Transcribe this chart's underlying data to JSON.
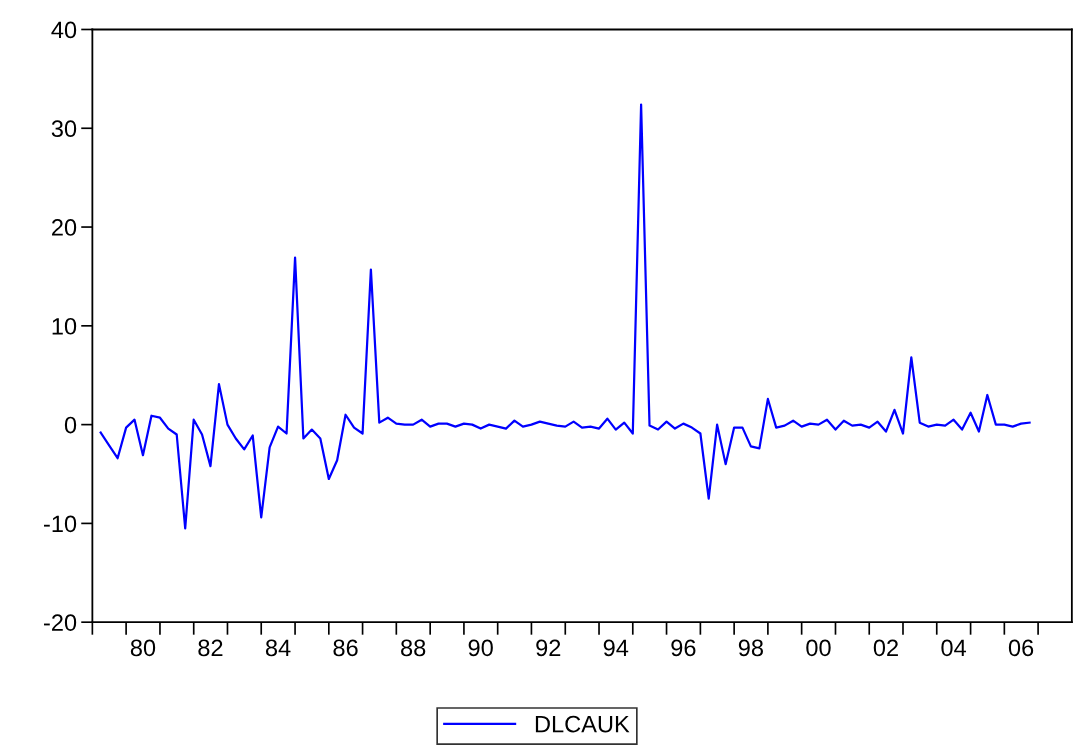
{
  "chart_data": {
    "type": "line",
    "x": [
      "1979-04",
      "1979-07",
      "1979-10",
      "1980-01",
      "1980-04",
      "1980-07",
      "1980-10",
      "1981-01",
      "1981-04",
      "1981-07",
      "1981-10",
      "1982-01",
      "1982-04",
      "1982-07",
      "1982-10",
      "1983-01",
      "1983-04",
      "1983-07",
      "1983-10",
      "1984-01",
      "1984-04",
      "1984-07",
      "1984-10",
      "1985-01",
      "1985-04",
      "1985-07",
      "1985-10",
      "1986-01",
      "1986-04",
      "1986-07",
      "1986-10",
      "1987-01",
      "1987-04",
      "1987-07",
      "1987-10",
      "1988-01",
      "1988-04",
      "1988-07",
      "1988-10",
      "1989-01",
      "1989-04",
      "1989-07",
      "1989-10",
      "1990-01",
      "1990-04",
      "1990-07",
      "1990-10",
      "1991-01",
      "1991-04",
      "1991-07",
      "1991-10",
      "1992-01",
      "1992-04",
      "1992-07",
      "1992-10",
      "1993-01",
      "1993-04",
      "1993-07",
      "1993-10",
      "1994-01",
      "1994-04",
      "1994-07",
      "1994-10",
      "1995-01",
      "1995-04",
      "1995-07",
      "1995-10",
      "1996-01",
      "1996-04",
      "1996-07",
      "1996-10",
      "1997-01",
      "1997-04",
      "1997-07",
      "1997-10",
      "1998-01",
      "1998-04",
      "1998-07",
      "1998-10",
      "1999-01",
      "1999-04",
      "1999-07",
      "1999-10",
      "2000-01",
      "2000-04",
      "2000-07",
      "2000-10",
      "2001-01",
      "2001-04",
      "2001-07",
      "2001-10",
      "2002-01",
      "2002-04",
      "2002-07",
      "2002-10",
      "2003-01",
      "2003-04",
      "2003-07",
      "2003-10",
      "2004-01",
      "2004-04",
      "2004-07",
      "2004-10",
      "2005-01",
      "2005-04",
      "2005-07",
      "2005-10",
      "2006-01",
      "2006-04",
      "2006-07",
      "2006-10"
    ],
    "series": [
      {
        "name": "DLCAUK",
        "color": "#0000ff",
        "values": [
          -0.8,
          -2.1,
          -3.4,
          -0.3,
          0.5,
          -3.1,
          0.9,
          0.7,
          -0.4,
          -1.0,
          -10.5,
          0.5,
          -1.0,
          -4.2,
          4.1,
          0.0,
          -1.4,
          -2.5,
          -1.1,
          -9.4,
          -2.3,
          -0.2,
          -0.9,
          16.9,
          -1.4,
          -0.5,
          -1.4,
          -5.5,
          -3.6,
          1.0,
          -0.3,
          -0.9,
          15.7,
          0.2,
          0.7,
          0.1,
          0.0,
          0.0,
          0.5,
          -0.2,
          0.1,
          0.1,
          -0.2,
          0.1,
          0.0,
          -0.4,
          0.0,
          -0.2,
          -0.4,
          0.4,
          -0.2,
          0.0,
          0.3,
          0.1,
          -0.1,
          -0.2,
          0.3,
          -0.3,
          -0.2,
          -0.4,
          0.6,
          -0.5,
          0.2,
          -0.9,
          32.4,
          -0.1,
          -0.5,
          0.3,
          -0.4,
          0.1,
          -0.3,
          -0.9,
          -7.5,
          0.0,
          -4.0,
          -0.3,
          -0.3,
          -2.2,
          -2.4,
          2.6,
          -0.3,
          -0.1,
          0.4,
          -0.2,
          0.1,
          0.0,
          0.5,
          -0.5,
          0.4,
          -0.1,
          0.0,
          -0.3,
          0.3,
          -0.7,
          1.5,
          -0.9,
          6.8,
          0.2,
          -0.2,
          0.0,
          -0.1,
          0.5,
          -0.5,
          1.2,
          -0.7,
          3.0,
          0.0,
          0.0,
          -0.2,
          0.1,
          0.2
        ]
      }
    ],
    "xlim": [
      "1979-01",
      "2008-01"
    ],
    "xticks": [
      {
        "value": "1979",
        "label": null
      },
      {
        "value": "1980",
        "label": null
      },
      {
        "value": "1981",
        "label": null
      },
      {
        "value": "1982",
        "label": null
      },
      {
        "value": "1983",
        "label": null
      },
      {
        "value": "1984",
        "label": null
      },
      {
        "value": "1985",
        "label": null
      },
      {
        "value": "1986",
        "label": null
      },
      {
        "value": "1987",
        "label": null
      },
      {
        "value": "1988",
        "label": null
      },
      {
        "value": "1989",
        "label": null
      },
      {
        "value": "1990",
        "label": null
      },
      {
        "value": "1991",
        "label": null
      },
      {
        "value": "1992",
        "label": null
      },
      {
        "value": "1993",
        "label": null
      },
      {
        "value": "1994",
        "label": null
      },
      {
        "value": "1995",
        "label": null
      },
      {
        "value": "1996",
        "label": null
      },
      {
        "value": "1997",
        "label": null
      },
      {
        "value": "1998",
        "label": null
      },
      {
        "value": "1999",
        "label": null
      },
      {
        "value": "2000",
        "label": null
      },
      {
        "value": "2001",
        "label": null
      },
      {
        "value": "2002",
        "label": null
      },
      {
        "value": "2003",
        "label": null
      },
      {
        "value": "2004",
        "label": null
      },
      {
        "value": "2005",
        "label": null
      },
      {
        "value": "2006",
        "label": null
      },
      {
        "value": "2007",
        "label": null
      },
      {
        "value": "1980-07",
        "label": "80"
      },
      {
        "value": "1982-07",
        "label": "82"
      },
      {
        "value": "1984-07",
        "label": "84"
      },
      {
        "value": "1986-07",
        "label": "86"
      },
      {
        "value": "1988-07",
        "label": "88"
      },
      {
        "value": "1990-07",
        "label": "90"
      },
      {
        "value": "1992-07",
        "label": "92"
      },
      {
        "value": "1994-07",
        "label": "94"
      },
      {
        "value": "1996-07",
        "label": "96"
      },
      {
        "value": "1998-07",
        "label": "98"
      },
      {
        "value": "2000-07",
        "label": "00"
      },
      {
        "value": "2002-07",
        "label": "02"
      },
      {
        "value": "2004-07",
        "label": "04"
      },
      {
        "value": "2006-07",
        "label": "06"
      }
    ],
    "ylim": [
      -20,
      40
    ],
    "yticks": [
      -20,
      -10,
      0,
      10,
      20,
      30,
      40
    ],
    "grid": false,
    "legend": "bottom",
    "marker": "none",
    "line_style": "solid"
  }
}
